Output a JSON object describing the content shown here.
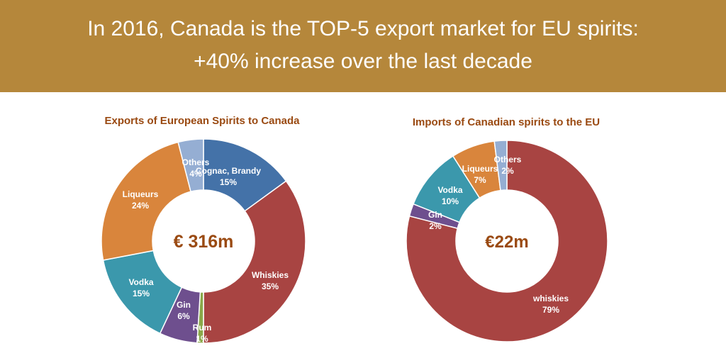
{
  "header": {
    "line1": "In 2016, Canada is the TOP-5 export market for EU spirits:",
    "line2": "+40% increase over the last decade"
  },
  "chart_data": [
    {
      "type": "pie",
      "title": "Exports of European Spirits to Canada",
      "center_label": "€ 316m",
      "slices": [
        {
          "label": "Cognac, Brandy",
          "value": 15,
          "color": "#4472a8"
        },
        {
          "label": "Whiskies",
          "value": 35,
          "color": "#a84442"
        },
        {
          "label": "Rum",
          "value": 1,
          "color": "#8aa84a"
        },
        {
          "label": "Gin",
          "value": 6,
          "color": "#6e4f8e"
        },
        {
          "label": "Vodka",
          "value": 15,
          "color": "#3b98ac"
        },
        {
          "label": "Liqueurs",
          "value": 24,
          "color": "#d9853c"
        },
        {
          "label": "Others",
          "value": 4,
          "color": "#95aed3"
        }
      ]
    },
    {
      "type": "pie",
      "title": "Imports of Canadian spirits to the EU",
      "center_label": "€22m",
      "slices": [
        {
          "label": "whiskies",
          "value": 79,
          "color": "#a84442"
        },
        {
          "label": "Gin",
          "value": 2,
          "color": "#6e4f8e"
        },
        {
          "label": "Vodka",
          "value": 10,
          "color": "#3b98ac"
        },
        {
          "label": "Liqueurs",
          "value": 7,
          "color": "#d9853c"
        },
        {
          "label": "Others",
          "value": 2,
          "color": "#95aed3"
        }
      ]
    }
  ]
}
